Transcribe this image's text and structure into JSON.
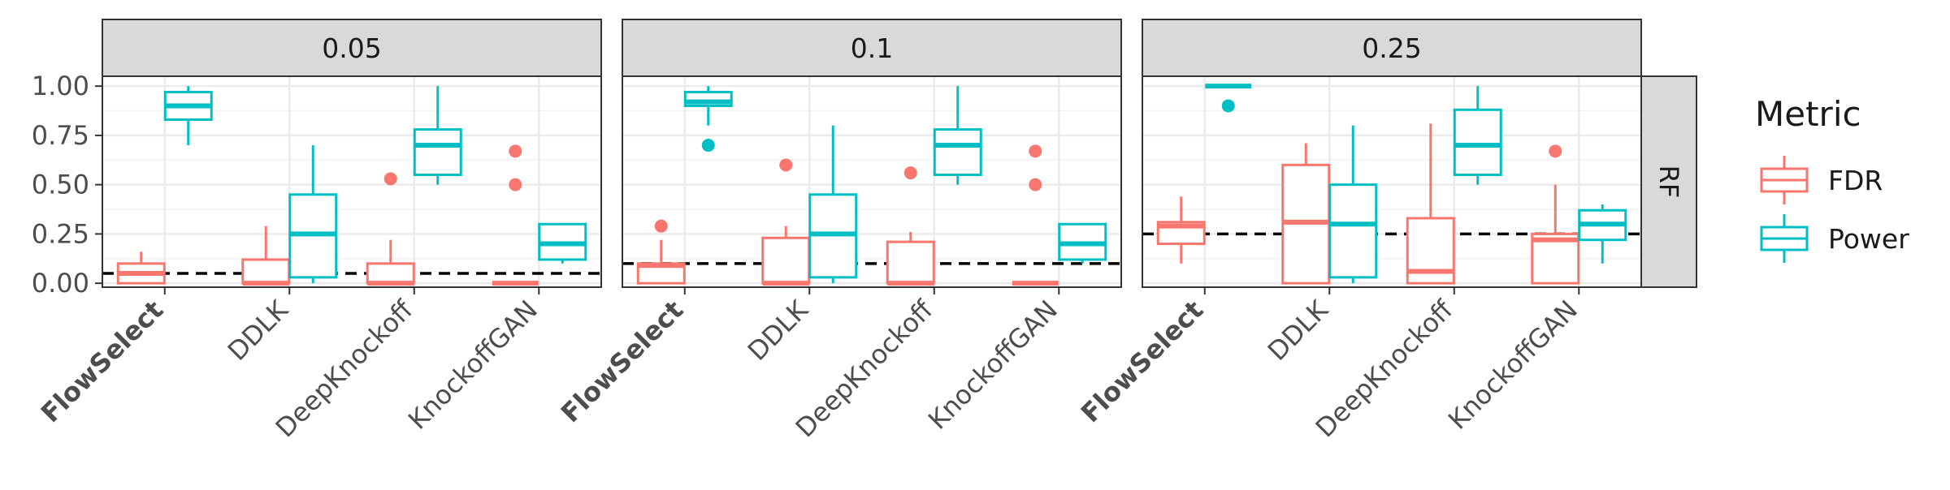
{
  "chart_data": {
    "type": "boxplot",
    "title": "",
    "xlabel": "",
    "ylabel": "",
    "ylim": [
      -0.02,
      1.05
    ],
    "y_ticks": [
      0.0,
      0.25,
      0.5,
      0.75,
      1.0
    ],
    "y_tick_labels": [
      "0.00",
      "0.25",
      "0.50",
      "0.75",
      "1.00"
    ],
    "categories": [
      "FlowSelect",
      "DDLK",
      "DeepKnockoff",
      "KnockoffGAN"
    ],
    "bold_category": "FlowSelect",
    "row_strip": "RF",
    "legend": {
      "title": "Metric",
      "position": "right",
      "entries": [
        {
          "name": "FDR",
          "color": "#F8766D"
        },
        {
          "name": "Power",
          "color": "#00BFC4"
        }
      ]
    },
    "series_order": [
      "FDR",
      "Power"
    ],
    "grid": true,
    "panels": [
      {
        "label": "0.05",
        "threshold": 0.05,
        "boxes": [
          {
            "category": "FlowSelect",
            "series": "FDR",
            "min": 0.0,
            "q1": 0.0,
            "median": 0.05,
            "q3": 0.1,
            "max": 0.16,
            "outliers": []
          },
          {
            "category": "FlowSelect",
            "series": "Power",
            "min": 0.7,
            "q1": 0.83,
            "median": 0.9,
            "q3": 0.97,
            "max": 1.0,
            "outliers": []
          },
          {
            "category": "DDLK",
            "series": "FDR",
            "min": 0.0,
            "q1": 0.0,
            "median": 0.0,
            "q3": 0.12,
            "max": 0.29,
            "outliers": []
          },
          {
            "category": "DDLK",
            "series": "Power",
            "min": 0.0,
            "q1": 0.03,
            "median": 0.25,
            "q3": 0.45,
            "max": 0.7,
            "outliers": []
          },
          {
            "category": "DeepKnockoff",
            "series": "FDR",
            "min": 0.0,
            "q1": 0.0,
            "median": 0.0,
            "q3": 0.1,
            "max": 0.22,
            "outliers": [
              0.53
            ]
          },
          {
            "category": "DeepKnockoff",
            "series": "Power",
            "min": 0.5,
            "q1": 0.55,
            "median": 0.7,
            "q3": 0.78,
            "max": 1.0,
            "outliers": []
          },
          {
            "category": "KnockoffGAN",
            "series": "FDR",
            "min": 0.0,
            "q1": 0.0,
            "median": 0.0,
            "q3": 0.0,
            "max": 0.0,
            "outliers": [
              0.67,
              0.5
            ]
          },
          {
            "category": "KnockoffGAN",
            "series": "Power",
            "min": 0.1,
            "q1": 0.12,
            "median": 0.2,
            "q3": 0.3,
            "max": 0.3,
            "outliers": []
          }
        ]
      },
      {
        "label": "0.1",
        "threshold": 0.1,
        "boxes": [
          {
            "category": "FlowSelect",
            "series": "FDR",
            "min": 0.0,
            "q1": 0.0,
            "median": 0.09,
            "q3": 0.1,
            "max": 0.22,
            "outliers": [
              0.29
            ]
          },
          {
            "category": "FlowSelect",
            "series": "Power",
            "min": 0.8,
            "q1": 0.9,
            "median": 0.92,
            "q3": 0.97,
            "max": 1.0,
            "outliers": [
              0.7
            ]
          },
          {
            "category": "DDLK",
            "series": "FDR",
            "min": 0.0,
            "q1": 0.0,
            "median": 0.0,
            "q3": 0.23,
            "max": 0.29,
            "outliers": [
              0.6
            ]
          },
          {
            "category": "DDLK",
            "series": "Power",
            "min": 0.0,
            "q1": 0.03,
            "median": 0.25,
            "q3": 0.45,
            "max": 0.8,
            "outliers": []
          },
          {
            "category": "DeepKnockoff",
            "series": "FDR",
            "min": 0.0,
            "q1": 0.0,
            "median": 0.0,
            "q3": 0.21,
            "max": 0.26,
            "outliers": [
              0.56
            ]
          },
          {
            "category": "DeepKnockoff",
            "series": "Power",
            "min": 0.5,
            "q1": 0.55,
            "median": 0.7,
            "q3": 0.78,
            "max": 1.0,
            "outliers": []
          },
          {
            "category": "KnockoffGAN",
            "series": "FDR",
            "min": 0.0,
            "q1": 0.0,
            "median": 0.0,
            "q3": 0.0,
            "max": 0.0,
            "outliers": [
              0.67,
              0.5
            ]
          },
          {
            "category": "KnockoffGAN",
            "series": "Power",
            "min": 0.1,
            "q1": 0.12,
            "median": 0.2,
            "q3": 0.3,
            "max": 0.3,
            "outliers": []
          }
        ]
      },
      {
        "label": "0.25",
        "threshold": 0.25,
        "boxes": [
          {
            "category": "FlowSelect",
            "series": "FDR",
            "min": 0.1,
            "q1": 0.2,
            "median": 0.29,
            "q3": 0.31,
            "max": 0.44,
            "outliers": []
          },
          {
            "category": "FlowSelect",
            "series": "Power",
            "min": 1.0,
            "q1": 1.0,
            "median": 1.0,
            "q3": 1.0,
            "max": 1.0,
            "outliers": [
              0.9
            ]
          },
          {
            "category": "DDLK",
            "series": "FDR",
            "min": 0.0,
            "q1": 0.0,
            "median": 0.31,
            "q3": 0.6,
            "max": 0.71,
            "outliers": []
          },
          {
            "category": "DDLK",
            "series": "Power",
            "min": 0.0,
            "q1": 0.03,
            "median": 0.3,
            "q3": 0.5,
            "max": 0.8,
            "outliers": []
          },
          {
            "category": "DeepKnockoff",
            "series": "FDR",
            "min": 0.0,
            "q1": 0.0,
            "median": 0.06,
            "q3": 0.33,
            "max": 0.81,
            "outliers": []
          },
          {
            "category": "DeepKnockoff",
            "series": "Power",
            "min": 0.5,
            "q1": 0.55,
            "median": 0.7,
            "q3": 0.88,
            "max": 1.0,
            "outliers": []
          },
          {
            "category": "KnockoffGAN",
            "series": "FDR",
            "min": 0.0,
            "q1": 0.0,
            "median": 0.22,
            "q3": 0.25,
            "max": 0.5,
            "outliers": [
              0.67
            ]
          },
          {
            "category": "KnockoffGAN",
            "series": "Power",
            "min": 0.1,
            "q1": 0.22,
            "median": 0.3,
            "q3": 0.37,
            "max": 0.4,
            "outliers": []
          }
        ]
      }
    ]
  }
}
